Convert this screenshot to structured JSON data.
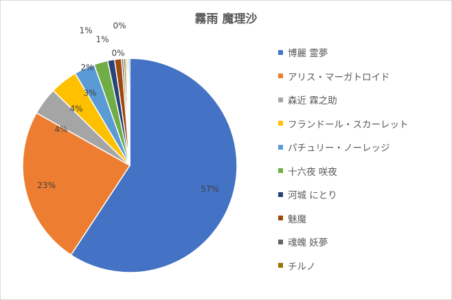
{
  "chart_data": {
    "type": "pie",
    "title": "霧雨 魔理沙",
    "legend_position": "right",
    "categories": [
      "博麗 霊夢",
      "アリス・マーガトロイド",
      "森近 霖之助",
      "フランドール・スカーレット",
      "パチュリー・ノーレッジ",
      "十六夜 咲夜",
      "河城 にとり",
      "魅魔",
      "魂魄 妖夢",
      "チルノ"
    ],
    "values": [
      57,
      23,
      4,
      4,
      3,
      2,
      1,
      1,
      0.3,
      0.3
    ],
    "data_labels": [
      "57%",
      "23%",
      "4%",
      "4%",
      "3%",
      "2%",
      "1%",
      "1%",
      "0%",
      "0%"
    ],
    "colors": [
      "#4472c4",
      "#ed7d31",
      "#a5a5a5",
      "#ffc000",
      "#5b9bd5",
      "#70ad47",
      "#264478",
      "#9e480e",
      "#636363",
      "#997300"
    ],
    "extra_slice_colors": [
      "#7f6000",
      "#c5e0b4",
      "#2e75b6"
    ]
  }
}
